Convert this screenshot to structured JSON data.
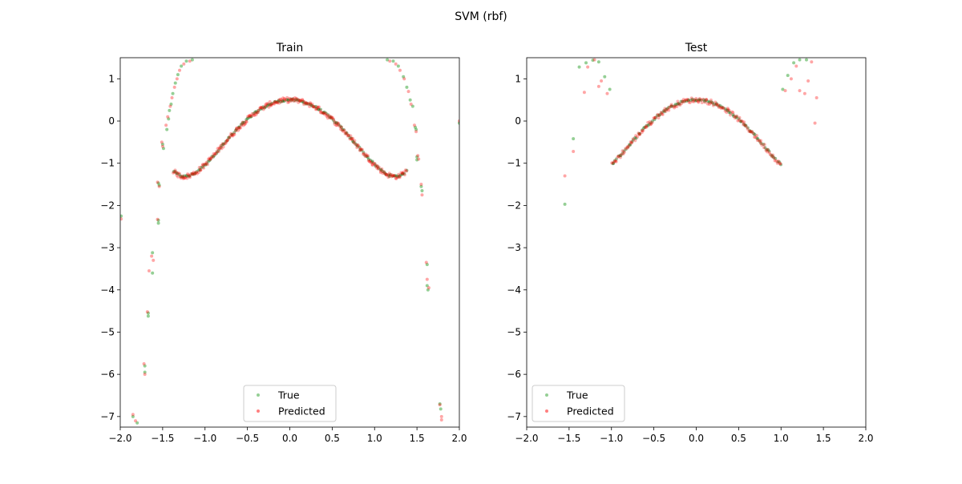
{
  "figure": {
    "title": "SVM (rbf)"
  },
  "colors": {
    "true_series": "#2ca02c",
    "predicted_series": "#ff0000",
    "true_dense": "#006400"
  },
  "chart_data": [
    {
      "type": "scatter",
      "title": "Train",
      "xlim": [
        -2.0,
        2.0
      ],
      "ylim": [
        -7.25,
        1.5
      ],
      "xticks": [
        -2.0,
        -1.5,
        -1.0,
        -0.5,
        0.0,
        0.5,
        1.0,
        1.5,
        2.0
      ],
      "xtick_labels": [
        "−2.0",
        "−1.5",
        "−1.0",
        "−0.5",
        "0.0",
        "0.5",
        "1.0",
        "1.5",
        "2.0"
      ],
      "yticks": [
        1,
        0,
        -1,
        -2,
        -3,
        -4,
        -5,
        -6,
        -7
      ],
      "ytick_labels": [
        "1",
        "0",
        "−1",
        "−2",
        "−3",
        "−4",
        "−5",
        "−6",
        "−7"
      ],
      "grid": false,
      "legend_position": "lower center",
      "series": [
        {
          "name": "True",
          "color": "#2ca02c",
          "points": [
            [
              -1.99,
              -2.25
            ],
            [
              -1.85,
              -7.0
            ],
            [
              -1.8,
              -7.15
            ],
            [
              -1.71,
              -5.8
            ],
            [
              -1.71,
              -5.95
            ],
            [
              -1.67,
              -4.55
            ],
            [
              -1.67,
              -4.62
            ],
            [
              -1.62,
              -3.12
            ],
            [
              -1.62,
              -3.6
            ],
            [
              -1.55,
              -1.47
            ],
            [
              -1.55,
              -2.35
            ],
            [
              -1.55,
              -2.42
            ],
            [
              -1.54,
              -1.52
            ],
            [
              -1.5,
              -0.55
            ],
            [
              -1.49,
              -0.65
            ],
            [
              -1.45,
              -0.2
            ],
            [
              -1.43,
              0.05
            ],
            [
              -1.42,
              0.25
            ],
            [
              -1.4,
              0.4
            ],
            [
              -1.38,
              0.65
            ],
            [
              -1.35,
              0.9
            ],
            [
              -1.32,
              1.1
            ],
            [
              -1.28,
              1.3
            ],
            [
              -1.22,
              1.42
            ],
            [
              -1.15,
              1.45
            ],
            [
              1.15,
              1.45
            ],
            [
              1.22,
              1.42
            ],
            [
              1.28,
              1.3
            ],
            [
              1.34,
              1.05
            ],
            [
              1.38,
              0.8
            ],
            [
              1.42,
              0.5
            ],
            [
              1.45,
              0.35
            ],
            [
              1.48,
              -0.15
            ],
            [
              1.49,
              -0.2
            ],
            [
              1.5,
              -0.85
            ],
            [
              1.5,
              -0.92
            ],
            [
              1.55,
              -1.55
            ],
            [
              1.56,
              -1.65
            ],
            [
              1.62,
              -3.4
            ],
            [
              1.62,
              -3.9
            ],
            [
              1.63,
              -4.0
            ],
            [
              1.77,
              -6.7
            ],
            [
              1.78,
              -6.82
            ],
            [
              2.0,
              -0.05
            ]
          ],
          "curve_samples": 170,
          "curve_formula": "y = 0.5*cos(3x)*2^(x^2) - x^4/24 + noise"
        },
        {
          "name": "Predicted",
          "color": "#ff0000",
          "points": [
            [
              -1.99,
              -2.32
            ],
            [
              -1.85,
              -6.95
            ],
            [
              -1.82,
              -7.1
            ],
            [
              -1.72,
              -5.75
            ],
            [
              -1.71,
              -6.0
            ],
            [
              -1.68,
              -4.52
            ],
            [
              -1.66,
              -3.55
            ],
            [
              -1.63,
              -3.2
            ],
            [
              -1.61,
              -3.3
            ],
            [
              -1.56,
              -1.45
            ],
            [
              -1.56,
              -2.33
            ],
            [
              -1.54,
              -1.55
            ],
            [
              -1.51,
              -0.5
            ],
            [
              -1.5,
              -0.6
            ],
            [
              -1.46,
              -0.1
            ],
            [
              -1.44,
              0.1
            ],
            [
              -1.41,
              0.35
            ],
            [
              -1.39,
              0.55
            ],
            [
              -1.36,
              0.8
            ],
            [
              -1.33,
              1.0
            ],
            [
              -1.3,
              1.2
            ],
            [
              -1.25,
              1.35
            ],
            [
              -1.18,
              1.42
            ],
            [
              1.18,
              1.42
            ],
            [
              1.25,
              1.35
            ],
            [
              1.3,
              1.2
            ],
            [
              1.35,
              1.0
            ],
            [
              1.4,
              0.7
            ],
            [
              1.43,
              0.4
            ],
            [
              1.47,
              -0.1
            ],
            [
              1.49,
              -0.25
            ],
            [
              1.51,
              -0.82
            ],
            [
              1.52,
              -0.9
            ],
            [
              1.55,
              -1.5
            ],
            [
              1.56,
              -1.75
            ],
            [
              1.61,
              -3.35
            ],
            [
              1.62,
              -3.75
            ],
            [
              1.64,
              -3.95
            ],
            [
              1.77,
              -6.72
            ],
            [
              1.79,
              -7.0
            ],
            [
              1.79,
              -7.08
            ],
            [
              2.0,
              0.0
            ]
          ],
          "curve_samples": 260,
          "curve_formula": "y = 0.5*cos(3x)*2^(x^2) - x^4/24 + noise"
        }
      ]
    },
    {
      "type": "scatter",
      "title": "Test",
      "xlim": [
        -2.0,
        2.0
      ],
      "ylim": [
        -7.25,
        1.5
      ],
      "xticks": [
        -2.0,
        -1.5,
        -1.0,
        -0.5,
        0.0,
        0.5,
        1.0,
        1.5,
        2.0
      ],
      "xtick_labels": [
        "−2.0",
        "−1.5",
        "−1.0",
        "−0.5",
        "0.0",
        "0.5",
        "1.0",
        "1.5",
        "2.0"
      ],
      "yticks": [
        1,
        0,
        -1,
        -2,
        -3,
        -4,
        -5,
        -6,
        -7
      ],
      "ytick_labels": [
        "1",
        "0",
        "−1",
        "−2",
        "−3",
        "−4",
        "−5",
        "−6",
        "−7"
      ],
      "grid": false,
      "legend_position": "lower left",
      "series": [
        {
          "name": "True",
          "color": "#2ca02c",
          "points": [
            [
              -1.55,
              -1.97
            ],
            [
              -1.45,
              -0.42
            ],
            [
              -1.38,
              1.28
            ],
            [
              -1.3,
              1.38
            ],
            [
              -1.22,
              1.44
            ],
            [
              -1.15,
              1.4
            ],
            [
              -1.08,
              1.05
            ],
            [
              -1.02,
              0.75
            ],
            [
              1.02,
              0.75
            ],
            [
              1.08,
              1.08
            ],
            [
              1.15,
              1.38
            ],
            [
              1.22,
              1.45
            ],
            [
              1.3,
              1.45
            ]
          ],
          "curve_x_range": [
            -1.0,
            1.0
          ],
          "curve_samples": 110,
          "curve_formula": "y = 0.5*cos(3x)*2^(x^2) - x^4/24 + noise"
        },
        {
          "name": "Predicted",
          "color": "#ff0000",
          "points": [
            [
              -1.55,
              -1.3
            ],
            [
              -1.45,
              -0.72
            ],
            [
              -1.32,
              0.68
            ],
            [
              -1.28,
              1.28
            ],
            [
              -1.2,
              1.45
            ],
            [
              -1.15,
              0.82
            ],
            [
              -1.12,
              0.95
            ],
            [
              -1.05,
              0.65
            ],
            [
              1.05,
              0.72
            ],
            [
              1.12,
              1.0
            ],
            [
              1.18,
              1.3
            ],
            [
              1.22,
              0.72
            ],
            [
              1.28,
              0.65
            ],
            [
              1.32,
              0.95
            ],
            [
              1.36,
              1.4
            ],
            [
              1.4,
              -0.05
            ],
            [
              1.42,
              0.55
            ]
          ],
          "curve_x_range": [
            -1.0,
            1.0
          ],
          "curve_samples": 150,
          "curve_formula": "y = 0.5*cos(3x)*2^(x^2) - x^4/24 + noise"
        }
      ]
    }
  ]
}
